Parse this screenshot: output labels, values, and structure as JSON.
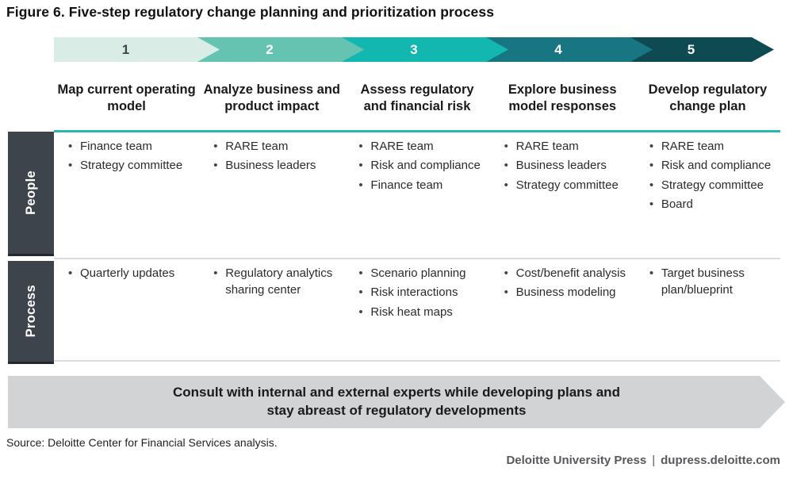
{
  "title": "Figure 6. Five-step regulatory change planning and prioritization process",
  "steps": [
    {
      "number": "1",
      "label": "Map current operating model",
      "color": "#d9ece5",
      "number_color": "#3f464d"
    },
    {
      "number": "2",
      "label": "Analyze business and product impact",
      "color": "#65c3b2",
      "number_color": "#ffffff"
    },
    {
      "number": "3",
      "label": "Assess regulatory and financial risk",
      "color": "#12b7af",
      "number_color": "#ffffff"
    },
    {
      "number": "4",
      "label": "Explore business model responses",
      "color": "#187682",
      "number_color": "#ffffff"
    },
    {
      "number": "5",
      "label": "Develop regulatory change plan",
      "color": "#0d4a52",
      "number_color": "#ffffff"
    }
  ],
  "rows": [
    {
      "label": "People",
      "cells": [
        [
          "Finance team",
          "Strategy committee"
        ],
        [
          "RARE team",
          "Business leaders"
        ],
        [
          "RARE team",
          "Risk and compliance",
          "Finance team"
        ],
        [
          "RARE team",
          "Business leaders",
          "Strategy committee"
        ],
        [
          "RARE team",
          "Risk and compliance",
          "Strategy committee",
          "Board"
        ]
      ]
    },
    {
      "label": "Process",
      "cells": [
        [
          "Quarterly updates"
        ],
        [
          "Regulatory analytics sharing center"
        ],
        [
          "Scenario planning",
          "Risk interactions",
          "Risk heat maps"
        ],
        [
          "Cost/benefit analysis",
          "Business modeling"
        ],
        [
          "Target business plan/blueprint"
        ]
      ]
    }
  ],
  "banner": {
    "line1": "Consult with internal and external experts while developing plans and",
    "line2": "stay abreast of regulatory developments"
  },
  "source": "Source: Deloitte Center for Financial Services analysis.",
  "footer": {
    "brand": "Deloitte University Press",
    "separator": "|",
    "url": "dupress.deloitte.com"
  },
  "colors": {
    "teal_line": "#2ab7b2",
    "sidebar_bg": "#3d444b",
    "banner_bg": "#d2d3d5",
    "footer_text": "#57585b"
  }
}
